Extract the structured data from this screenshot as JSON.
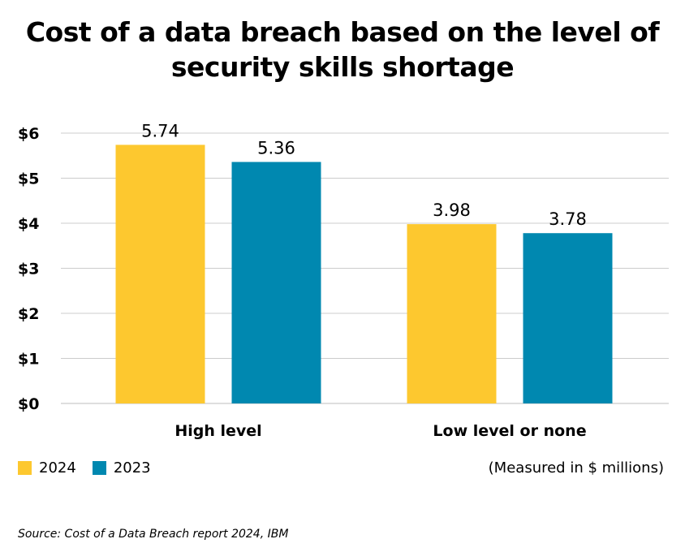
{
  "title_lines": [
    "Cost of a data breach based on the level of",
    "security skills shortage"
  ],
  "unit_note": "(Measured in $ millions)",
  "source": "Source: Cost of a Data Breach report 2024, IBM",
  "colors": {
    "series_2024": "#FDC82F",
    "series_2023": "#0088B0",
    "grid": "#cccccc"
  },
  "chart_data": {
    "type": "bar",
    "title": "Cost of a data breach based on the level of security skills shortage",
    "categories": [
      "High level",
      "Low level or none"
    ],
    "series": [
      {
        "name": "2024",
        "values": [
          5.74,
          3.98
        ],
        "labels": [
          "5.74",
          "3.98"
        ]
      },
      {
        "name": "2023",
        "values": [
          5.36,
          3.78
        ],
        "labels": [
          "5.36",
          "3.78"
        ]
      }
    ],
    "ylim": [
      0,
      6
    ],
    "yticks": [
      0,
      1,
      2,
      3,
      4,
      5,
      6
    ],
    "ytick_labels": [
      "$0",
      "$1",
      "$2",
      "$3",
      "$4",
      "$5",
      "$6"
    ],
    "grid": true,
    "legend_position": "bottom-left"
  }
}
